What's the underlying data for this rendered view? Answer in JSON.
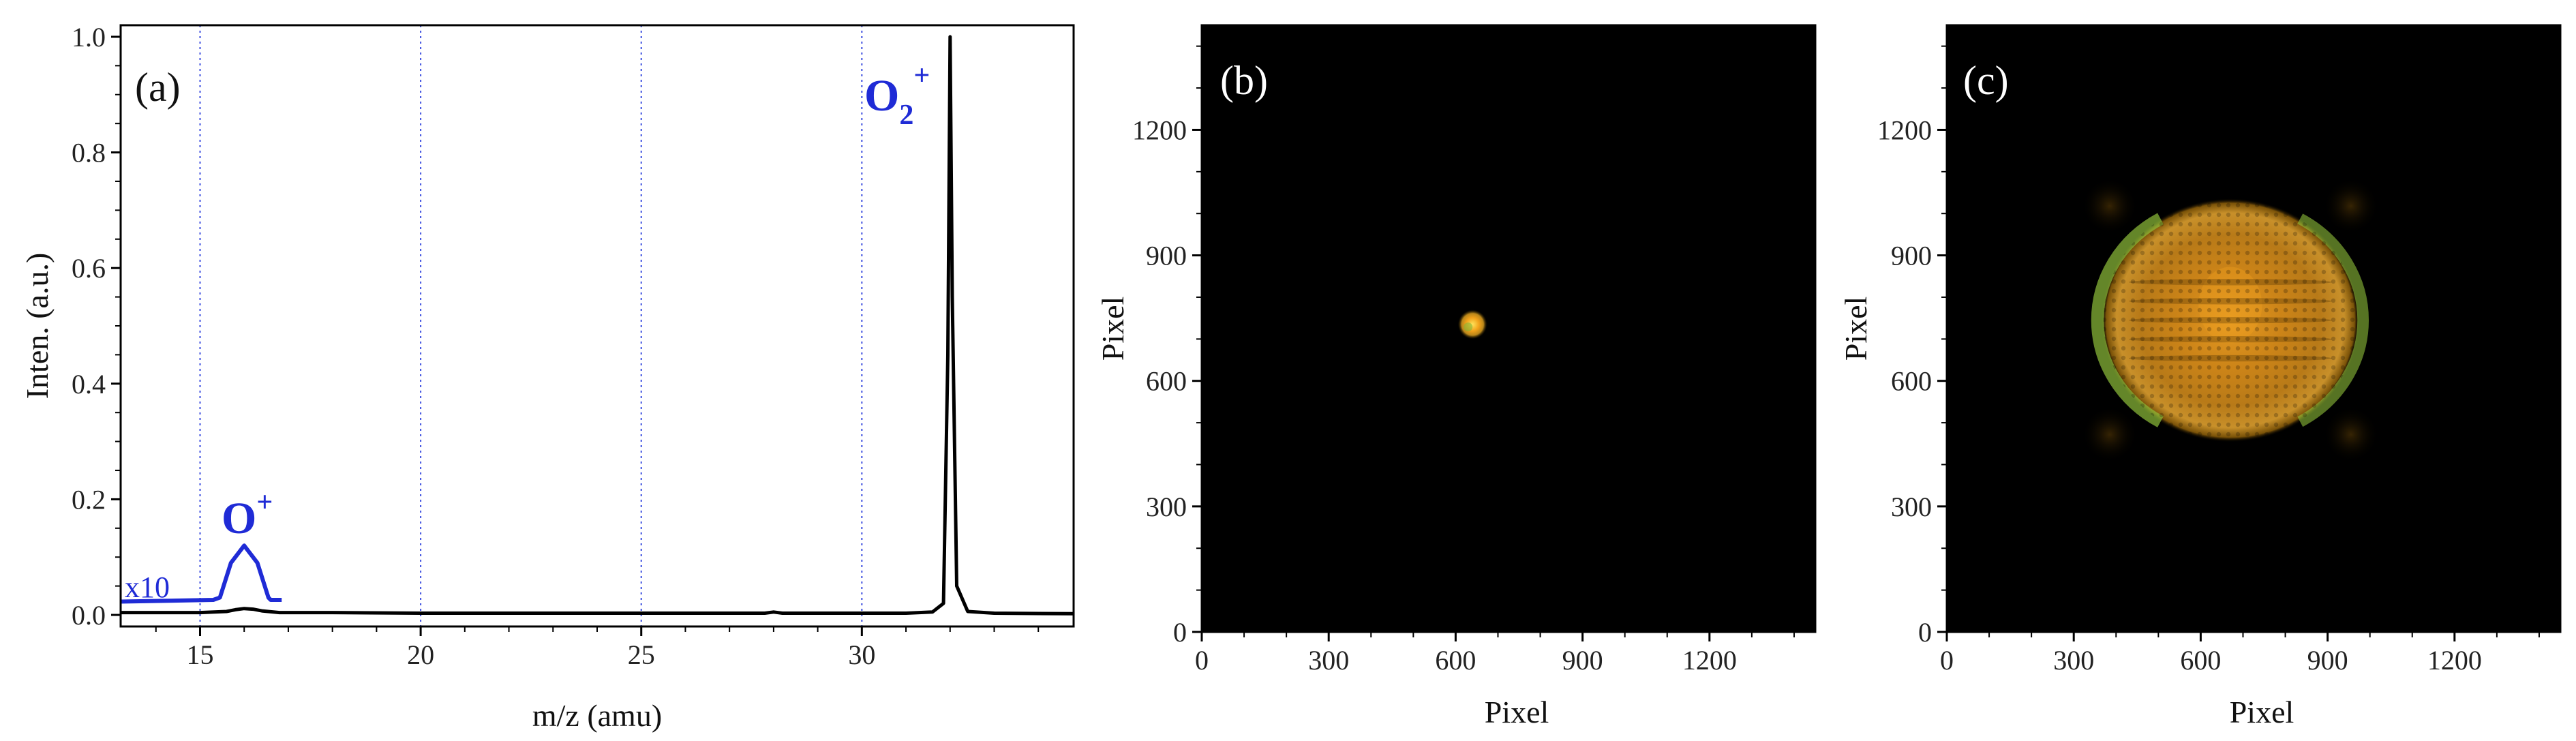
{
  "chart_data": [
    {
      "panel": "(a)",
      "type": "line",
      "xlabel": "m/z (amu)",
      "ylabel": "Inten. (a.u.)",
      "xlim": [
        13.2,
        34.8
      ],
      "ylim": [
        -0.02,
        1.02
      ],
      "x_ticks": [
        15,
        20,
        25,
        30
      ],
      "y_ticks": [
        0.0,
        0.2,
        0.4,
        0.6,
        0.8,
        1.0
      ],
      "y_tick_labels": [
        "0.0",
        "0.2",
        "0.4",
        "0.6",
        "0.8",
        "1.0"
      ],
      "grid": "vertical dotted lines at x = 15, 20, 25, 30",
      "series": [
        {
          "color": "#000000",
          "x": [
            13.2,
            15.0,
            15.6,
            15.8,
            16.0,
            16.2,
            16.4,
            16.8,
            18.0,
            20.0,
            25.0,
            27.8,
            28.0,
            28.2,
            30.0,
            31.0,
            31.6,
            31.85,
            31.95,
            32.0,
            32.05,
            32.15,
            32.4,
            33.0,
            34.8
          ],
          "values": [
            0.004,
            0.004,
            0.006,
            0.009,
            0.011,
            0.01,
            0.007,
            0.004,
            0.004,
            0.003,
            0.003,
            0.003,
            0.005,
            0.003,
            0.003,
            0.003,
            0.005,
            0.02,
            0.45,
            1.0,
            0.55,
            0.05,
            0.006,
            0.003,
            0.002
          ]
        },
        {
          "color": "#1f2bd6",
          "x": [
            13.2,
            15.3,
            15.45,
            15.7,
            16.0,
            16.3,
            16.55,
            16.6,
            16.85
          ],
          "values": [
            0.023,
            0.026,
            0.03,
            0.09,
            0.12,
            0.09,
            0.03,
            0.026,
            0.026
          ]
        }
      ],
      "annotations": {
        "o2_base": "O",
        "o2_sub": "2",
        "o2_sup": "+",
        "o_base": "O",
        "o_sup": "+",
        "scale": "x10"
      }
    },
    {
      "panel": "(b)",
      "type": "heatmap",
      "xlabel": "Pixel",
      "ylabel": "Pixel",
      "xlim": [
        0,
        1450
      ],
      "ylim": [
        0,
        1450
      ],
      "x_ticks": [
        0,
        300,
        600,
        900,
        1200
      ],
      "y_ticks": [
        0,
        300,
        600,
        900,
        1200
      ],
      "background": "#000000",
      "features": [
        {
          "shape": "spot",
          "cx": 640,
          "cy": 735,
          "r": 30,
          "colors": [
            "#ffd23a",
            "#e07a10",
            "#7ab83a"
          ]
        }
      ]
    },
    {
      "panel": "(c)",
      "type": "heatmap",
      "xlabel": "Pixel",
      "ylabel": "Pixel",
      "xlim": [
        0,
        1450
      ],
      "ylim": [
        0,
        1450
      ],
      "x_ticks": [
        0,
        300,
        600,
        900,
        1200
      ],
      "y_ticks": [
        0,
        300,
        600,
        900,
        1200
      ],
      "background": "#000000",
      "features": [
        {
          "shape": "ring",
          "cx": 670,
          "cy": 745,
          "r": 300,
          "colors": [
            "#d98a1a",
            "#8fbf3a",
            "#f0a020"
          ]
        }
      ]
    }
  ]
}
